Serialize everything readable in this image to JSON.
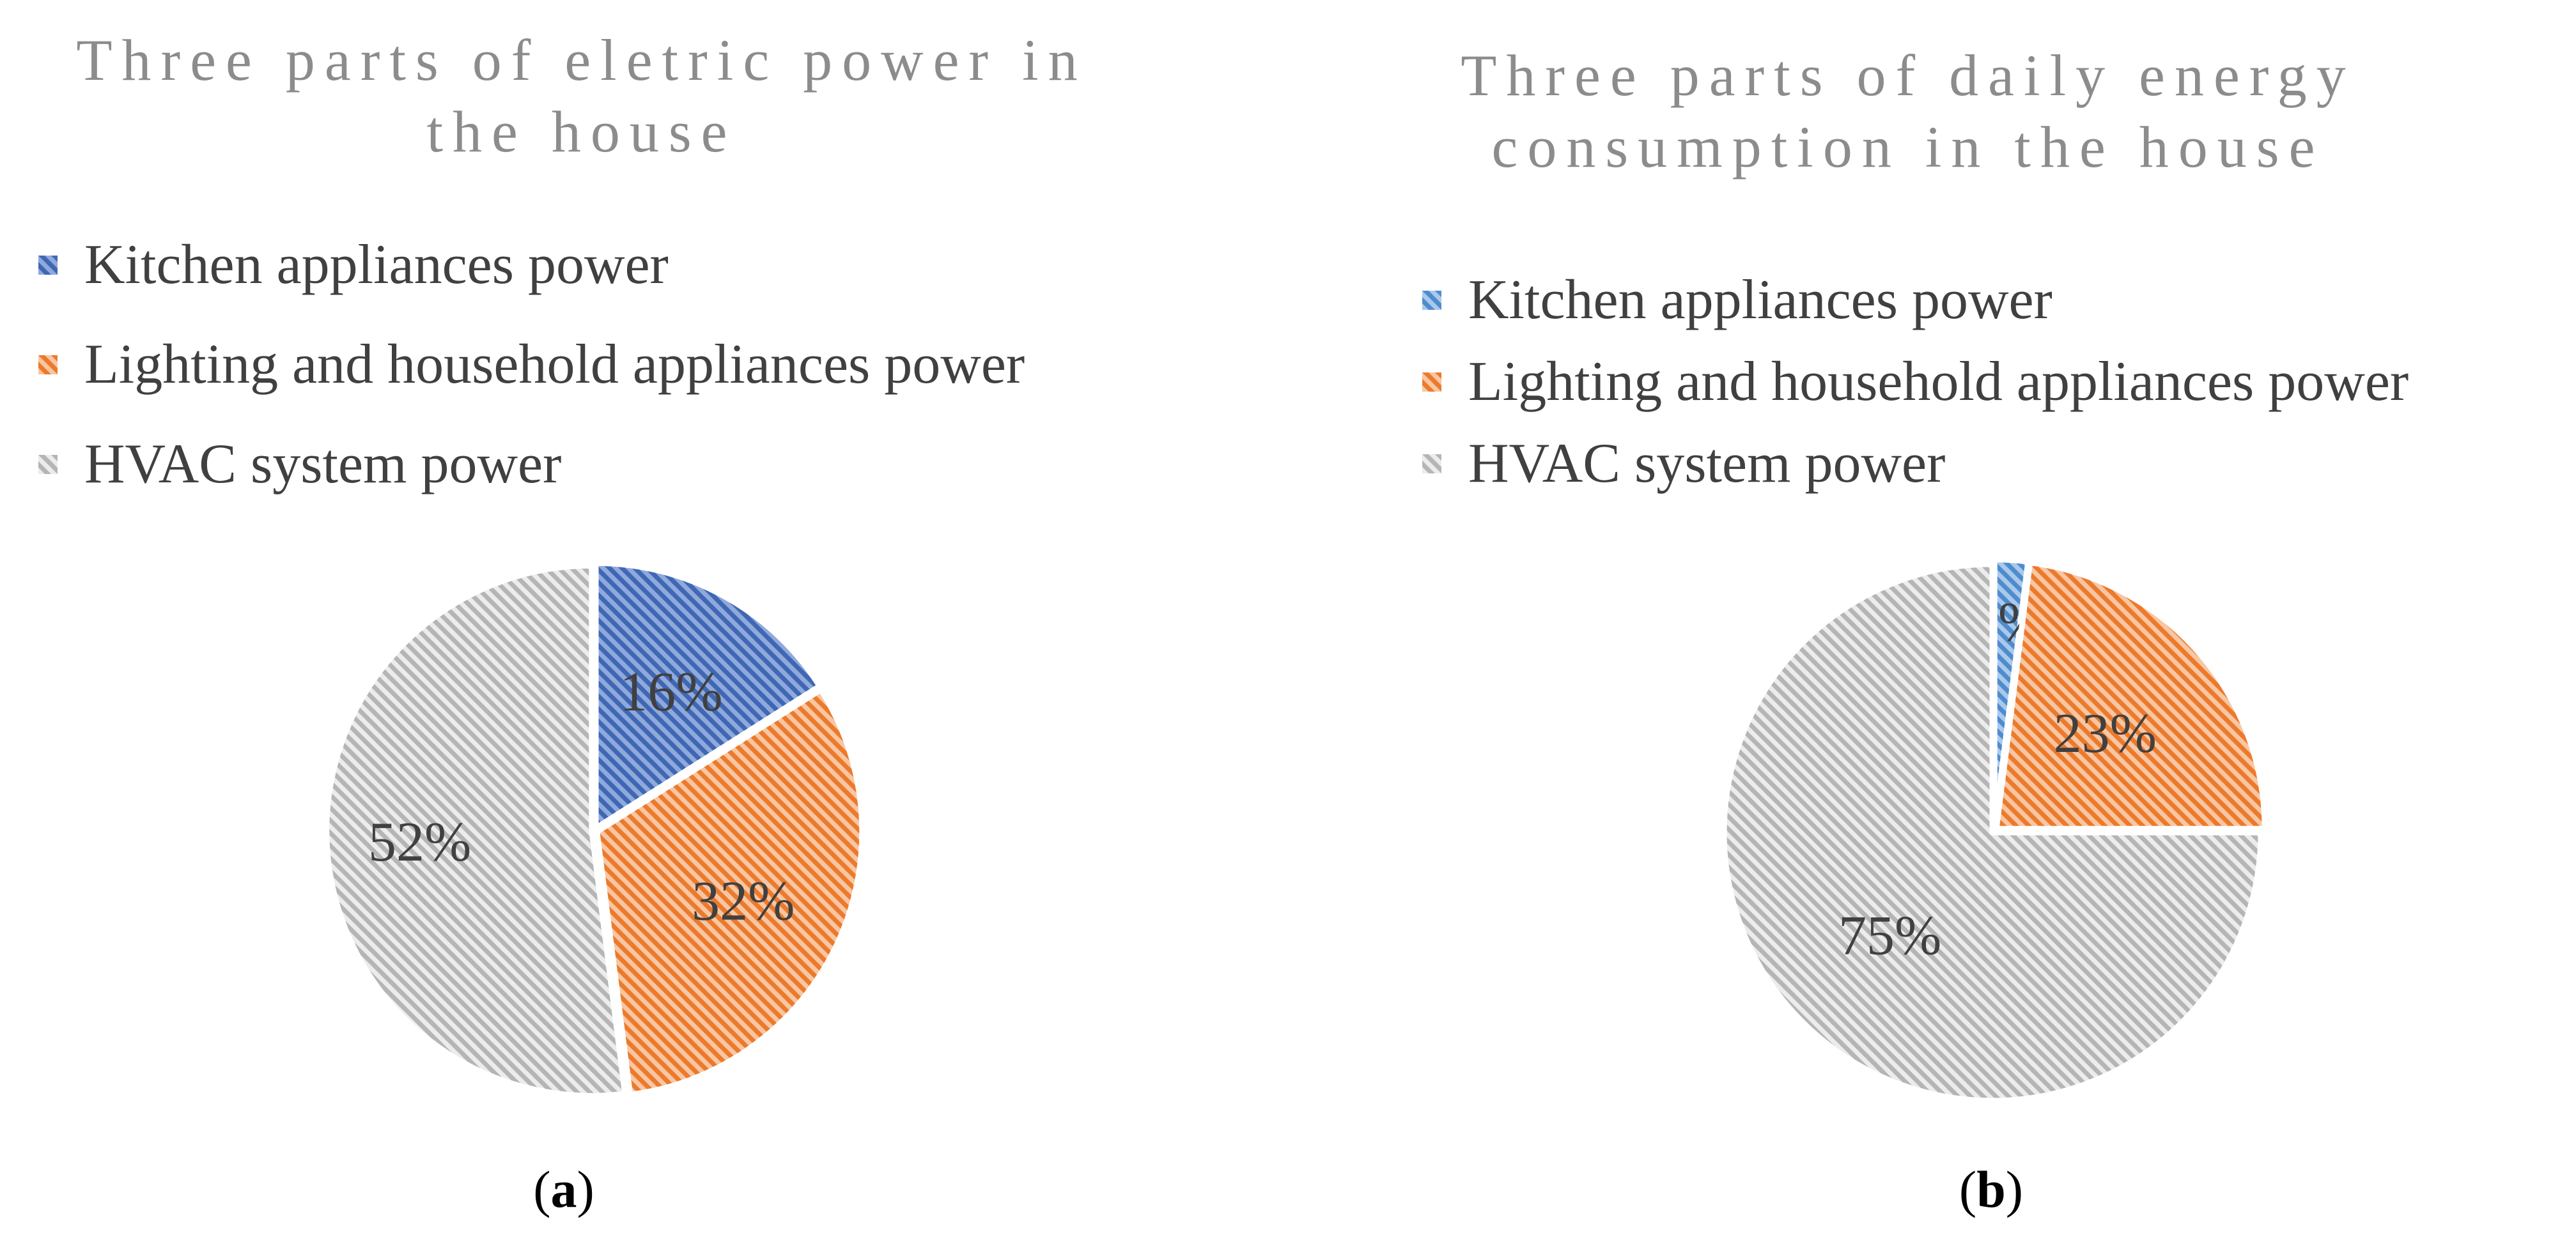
{
  "chart_data": [
    {
      "type": "pie",
      "title": "Three parts of eletric power in the house",
      "legend_position": "top",
      "categories": [
        "Kitchen appliances power",
        "Lighting and household appliances power",
        "HVAC system power"
      ],
      "values": [
        16,
        32,
        52
      ],
      "data_labels": [
        "16%",
        "32%",
        "52%"
      ],
      "colors": [
        "#4472c4",
        "#ed7d31",
        "#bfbfbf"
      ],
      "subfigure_label": "a"
    },
    {
      "type": "pie",
      "title": "Three parts of daily energy consumption in the house",
      "legend_position": "top",
      "categories": [
        "Kitchen appliances power",
        "Lighting and household appliances power",
        "HVAC system power"
      ],
      "values": [
        2,
        23,
        75
      ],
      "data_labels": [
        "2%",
        "23%",
        "75%"
      ],
      "colors": [
        "#5b9bd5",
        "#ed7d31",
        "#bfbfbf"
      ],
      "subfigure_label": "b"
    }
  ]
}
